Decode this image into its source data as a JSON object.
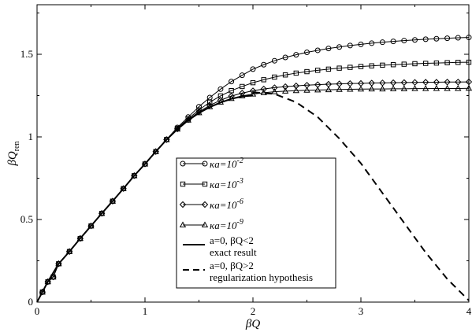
{
  "chart_data": {
    "type": "line",
    "xlabel": "βQ",
    "ylabel_main": "βQ",
    "ylabel_sub": "ren",
    "xlim": [
      0,
      4
    ],
    "ylim": [
      0,
      1.8
    ],
    "xticks": [
      0,
      1,
      2,
      3,
      4
    ],
    "xtick_labels": [
      "0",
      "1",
      "2",
      "3",
      "4"
    ],
    "yticks": [
      0,
      0.5,
      1,
      1.5
    ],
    "ytick_labels": [
      "0",
      "0.5",
      "1",
      "1.5"
    ],
    "grid": false,
    "legend_placement": "center-bottom",
    "series": [
      {
        "name": "κa=10^-2",
        "legend_main": "κa=10",
        "legend_sup": "-2",
        "marker": "circle",
        "style": "solid",
        "x": [
          0,
          0.05,
          0.1,
          0.15,
          0.2,
          0.3,
          0.4,
          0.5,
          0.6,
          0.7,
          0.8,
          0.9,
          1.0,
          1.1,
          1.2,
          1.3,
          1.4,
          1.5,
          1.6,
          1.7,
          1.8,
          1.9,
          2.0,
          2.1,
          2.2,
          2.3,
          2.4,
          2.5,
          2.6,
          2.7,
          2.8,
          2.9,
          3.0,
          3.1,
          3.2,
          3.3,
          3.4,
          3.5,
          3.6,
          3.7,
          3.8,
          3.9,
          4.0
        ],
        "y": [
          0,
          0.061,
          0.123,
          0.152,
          0.232,
          0.306,
          0.385,
          0.461,
          0.537,
          0.611,
          0.687,
          0.765,
          0.836,
          0.911,
          0.985,
          1.057,
          1.12,
          1.183,
          1.238,
          1.289,
          1.335,
          1.373,
          1.41,
          1.437,
          1.461,
          1.481,
          1.497,
          1.512,
          1.524,
          1.535,
          1.544,
          1.553,
          1.56,
          1.567,
          1.573,
          1.578,
          1.583,
          1.587,
          1.591,
          1.594,
          1.597,
          1.6,
          1.602
        ]
      },
      {
        "name": "κa=10^-3",
        "legend_main": "κa=10",
        "legend_sup": "-3",
        "marker": "square",
        "style": "solid",
        "x": [
          0,
          0.05,
          0.1,
          0.15,
          0.2,
          0.3,
          0.4,
          0.5,
          0.6,
          0.7,
          0.8,
          0.9,
          1.0,
          1.1,
          1.2,
          1.3,
          1.4,
          1.5,
          1.6,
          1.7,
          1.8,
          1.9,
          2.0,
          2.1,
          2.2,
          2.3,
          2.4,
          2.5,
          2.6,
          2.7,
          2.8,
          2.9,
          3.0,
          3.1,
          3.2,
          3.3,
          3.4,
          3.5,
          3.6,
          3.7,
          3.8,
          3.9,
          4.0
        ],
        "y": [
          0,
          0.061,
          0.123,
          0.152,
          0.232,
          0.306,
          0.385,
          0.461,
          0.537,
          0.611,
          0.687,
          0.765,
          0.836,
          0.911,
          0.984,
          1.052,
          1.11,
          1.163,
          1.21,
          1.248,
          1.28,
          1.305,
          1.328,
          1.346,
          1.362,
          1.375,
          1.386,
          1.395,
          1.403,
          1.41,
          1.416,
          1.421,
          1.426,
          1.43,
          1.434,
          1.437,
          1.44,
          1.443,
          1.445,
          1.447,
          1.449,
          1.451,
          1.452
        ]
      },
      {
        "name": "κa=10^-6",
        "legend_main": "κa=10",
        "legend_sup": "-6",
        "marker": "diamond",
        "style": "solid",
        "x": [
          0,
          0.05,
          0.1,
          0.15,
          0.2,
          0.3,
          0.4,
          0.5,
          0.6,
          0.7,
          0.8,
          0.9,
          1.0,
          1.1,
          1.2,
          1.3,
          1.4,
          1.5,
          1.6,
          1.7,
          1.8,
          1.9,
          2.0,
          2.1,
          2.2,
          2.3,
          2.4,
          2.5,
          2.6,
          2.7,
          2.8,
          2.9,
          3.0,
          3.1,
          3.2,
          3.3,
          3.4,
          3.5,
          3.6,
          3.7,
          3.8,
          3.9,
          4.0
        ],
        "y": [
          0,
          0.061,
          0.123,
          0.152,
          0.232,
          0.306,
          0.385,
          0.461,
          0.537,
          0.611,
          0.687,
          0.765,
          0.836,
          0.911,
          0.983,
          1.048,
          1.104,
          1.152,
          1.19,
          1.222,
          1.247,
          1.265,
          1.279,
          1.29,
          1.298,
          1.304,
          1.309,
          1.313,
          1.316,
          1.319,
          1.321,
          1.323,
          1.324,
          1.326,
          1.327,
          1.328,
          1.329,
          1.33,
          1.331,
          1.331,
          1.332,
          1.332,
          1.333
        ]
      },
      {
        "name": "κa=10^-9",
        "legend_main": "κa=10",
        "legend_sup": "-9",
        "marker": "triangle",
        "style": "solid",
        "x": [
          0,
          0.05,
          0.1,
          0.15,
          0.2,
          0.3,
          0.4,
          0.5,
          0.6,
          0.7,
          0.8,
          0.9,
          1.0,
          1.1,
          1.2,
          1.3,
          1.4,
          1.5,
          1.6,
          1.7,
          1.8,
          1.9,
          2.0,
          2.1,
          2.2,
          2.3,
          2.4,
          2.5,
          2.6,
          2.7,
          2.8,
          2.9,
          3.0,
          3.1,
          3.2,
          3.3,
          3.4,
          3.5,
          3.6,
          3.7,
          3.8,
          3.9,
          4.0
        ],
        "y": [
          0,
          0.061,
          0.123,
          0.152,
          0.232,
          0.306,
          0.385,
          0.461,
          0.537,
          0.611,
          0.687,
          0.765,
          0.836,
          0.911,
          0.983,
          1.047,
          1.101,
          1.146,
          1.182,
          1.21,
          1.232,
          1.248,
          1.259,
          1.267,
          1.273,
          1.277,
          1.28,
          1.282,
          1.284,
          1.285,
          1.287,
          1.288,
          1.289,
          1.29,
          1.29,
          1.291,
          1.291,
          1.292,
          1.292,
          1.293,
          1.293,
          1.293,
          1.294
        ]
      },
      {
        "name": "a=0, βQ<2 exact result",
        "legend_line1": "a=0, βQ<2",
        "legend_line2": "exact result",
        "marker": "none",
        "style": "solid",
        "x": [
          0,
          0.1,
          0.2,
          0.3,
          0.4,
          0.5,
          0.6,
          0.7,
          0.8,
          0.9,
          1.0,
          1.1,
          1.2,
          1.3,
          1.4,
          1.5,
          1.6,
          1.7,
          1.8,
          1.9,
          2.0
        ],
        "y": [
          0,
          0.123,
          0.232,
          0.306,
          0.385,
          0.461,
          0.537,
          0.611,
          0.687,
          0.765,
          0.836,
          0.911,
          0.983,
          1.046,
          1.1,
          1.145,
          1.18,
          1.208,
          1.23,
          1.245,
          1.25
        ]
      },
      {
        "name": "a=0, βQ>2 regularization hypothesis",
        "legend_line1": "a=0, βQ>2",
        "legend_line2": "regularization hypothesis",
        "marker": "none",
        "style": "dashed",
        "x": [
          2.0,
          2.2,
          2.4,
          2.6,
          2.8,
          3.0,
          3.2,
          3.4,
          3.6,
          3.8,
          4.0
        ],
        "y": [
          1.27,
          1.26,
          1.21,
          1.12,
          0.99,
          0.84,
          0.66,
          0.48,
          0.3,
          0.14,
          0.01
        ]
      }
    ]
  }
}
